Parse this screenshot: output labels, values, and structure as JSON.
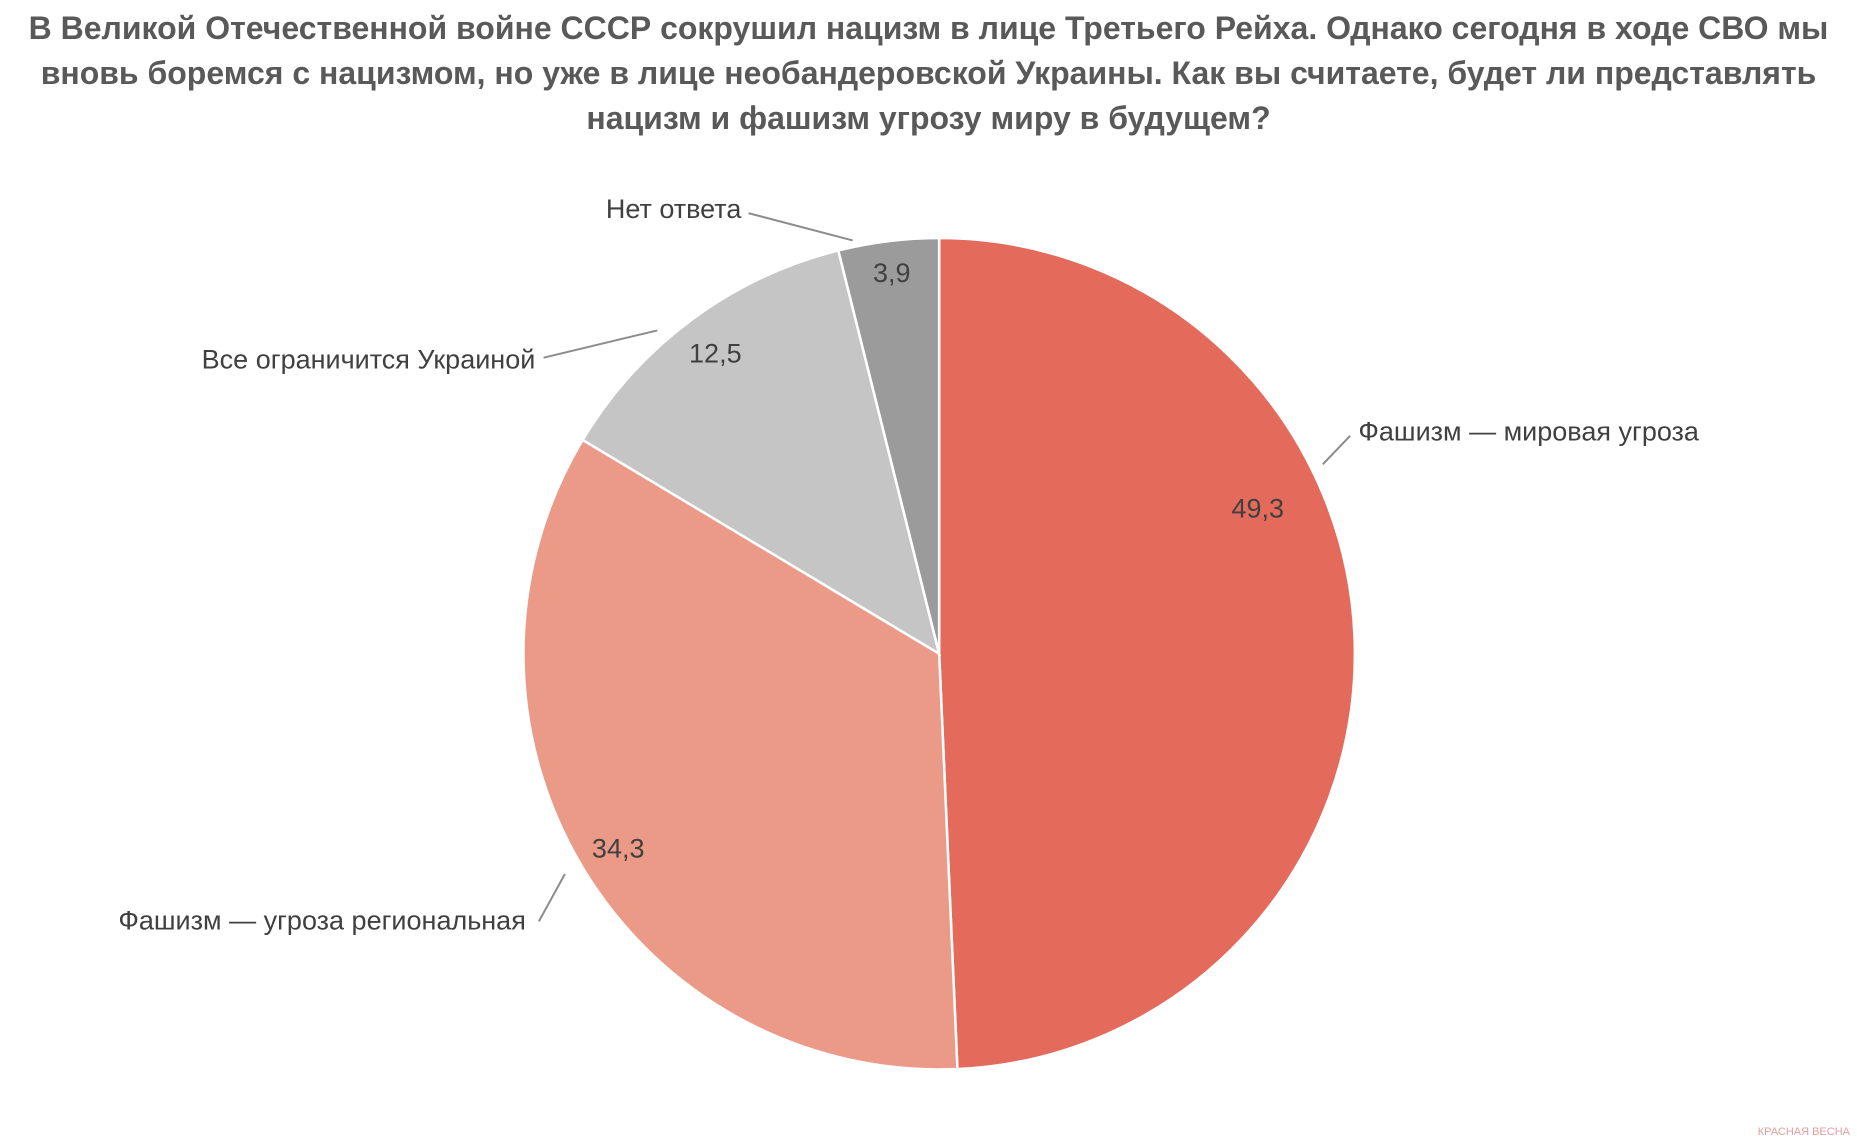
{
  "chart_data": {
    "type": "pie",
    "title": "В Великой Отечественной войне СССР сокрушил нацизм в лице Третьего Рейха. Однако сегодня в ходе СВО мы вновь боремся с нацизмом, но уже в лице необандеровской Украины. Как вы считаете, будет ли представлять нацизм и фашизм угрозу миру в будущем?",
    "categories": [
      "Фашизм — мировая угроза",
      "Фашизм — угроза региональная",
      "Все ограничится Украиной",
      "Нет ответа"
    ],
    "values": [
      49.3,
      34.3,
      12.5,
      3.9
    ],
    "value_labels": [
      "49,3",
      "34,3",
      "12,5",
      "3,9"
    ],
    "colors": [
      "#e46a5c",
      "#eb9a88",
      "#c4c5c4",
      "#9b9b9b"
    ],
    "watermark": "КРАСНАЯ ВЕСНА"
  }
}
